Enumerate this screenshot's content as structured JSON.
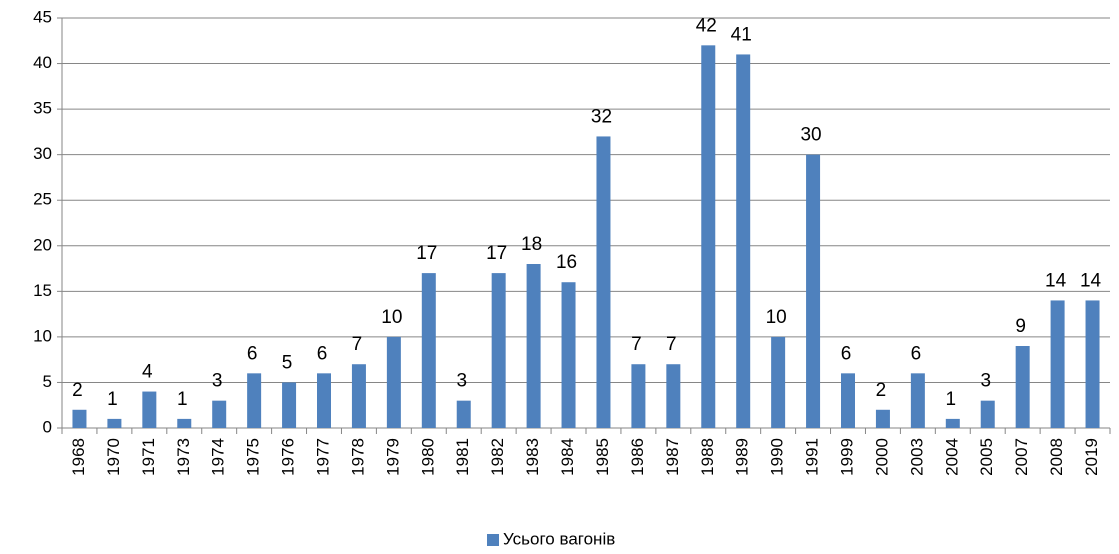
{
  "chart_data": {
    "type": "bar",
    "categories": [
      "1968",
      "1970",
      "1971",
      "1973",
      "1974",
      "1975",
      "1976",
      "1977",
      "1978",
      "1979",
      "1980",
      "1981",
      "1982",
      "1983",
      "1984",
      "1985",
      "1986",
      "1987",
      "1988",
      "1989",
      "1990",
      "1991",
      "1999",
      "2000",
      "2003",
      "2004",
      "2005",
      "2007",
      "2008",
      "2019"
    ],
    "series": [
      {
        "name": "Усього вагонів",
        "color": "#4f81bd",
        "values": [
          2,
          1,
          4,
          1,
          3,
          6,
          5,
          6,
          7,
          10,
          17,
          3,
          17,
          18,
          16,
          32,
          7,
          7,
          42,
          41,
          10,
          30,
          6,
          2,
          6,
          1,
          3,
          9,
          14,
          14
        ]
      }
    ],
    "ylim": [
      0,
      45
    ],
    "yticks": [
      0,
      5,
      10,
      15,
      20,
      25,
      30,
      35,
      40,
      45
    ],
    "grid": true,
    "legend": "bottom"
  }
}
